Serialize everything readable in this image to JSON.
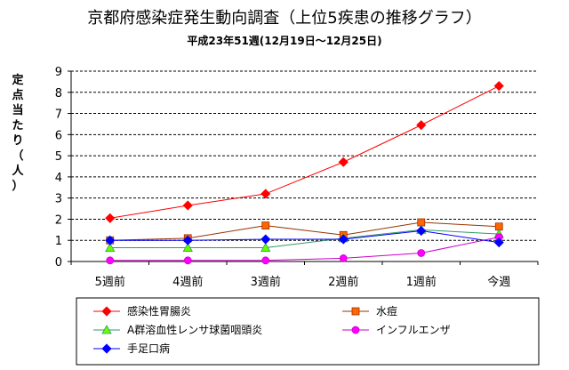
{
  "chart_data": {
    "type": "line",
    "title": "京都府感染症発生動向調査（上位5疾患の推移グラフ）",
    "subtitle": "平成23年51週(12月19日〜12月25日)",
    "ylabel": "定点当たり（人）",
    "xlabel": "",
    "categories": [
      "5週前",
      "4週前",
      "3週前",
      "2週前",
      "1週前",
      "今週"
    ],
    "ylim": [
      0,
      9
    ],
    "yticks": [
      0,
      1,
      2,
      3,
      4,
      5,
      6,
      7,
      8,
      9
    ],
    "grid": "horizontal-dashed",
    "legend_position": "bottom",
    "series": [
      {
        "name": "感染性胃腸炎",
        "values": [
          2.05,
          2.65,
          3.2,
          4.7,
          6.45,
          8.3
        ],
        "color": "#ff0000",
        "marker": "diamond",
        "marker_color": "#ff0000"
      },
      {
        "name": "水痘",
        "values": [
          1.0,
          1.1,
          1.7,
          1.25,
          1.85,
          1.65
        ],
        "color": "#993300",
        "marker": "square",
        "marker_color": "#ff6600"
      },
      {
        "name": "A群溶血性レンサ球菌咽頭炎",
        "values": [
          0.65,
          0.65,
          0.65,
          1.1,
          1.5,
          1.3
        ],
        "color": "#339966",
        "marker": "triangle",
        "marker_color": "#66ff00"
      },
      {
        "name": "インフルエンザ",
        "values": [
          0.05,
          0.05,
          0.05,
          0.15,
          0.4,
          1.15
        ],
        "color": "#cc00cc",
        "marker": "circle",
        "marker_color": "#ff00ff"
      },
      {
        "name": "手足口病",
        "values": [
          1.0,
          1.0,
          1.05,
          1.05,
          1.45,
          0.9
        ],
        "color": "#0000ff",
        "marker": "diamond",
        "marker_color": "#0000ff"
      }
    ]
  }
}
